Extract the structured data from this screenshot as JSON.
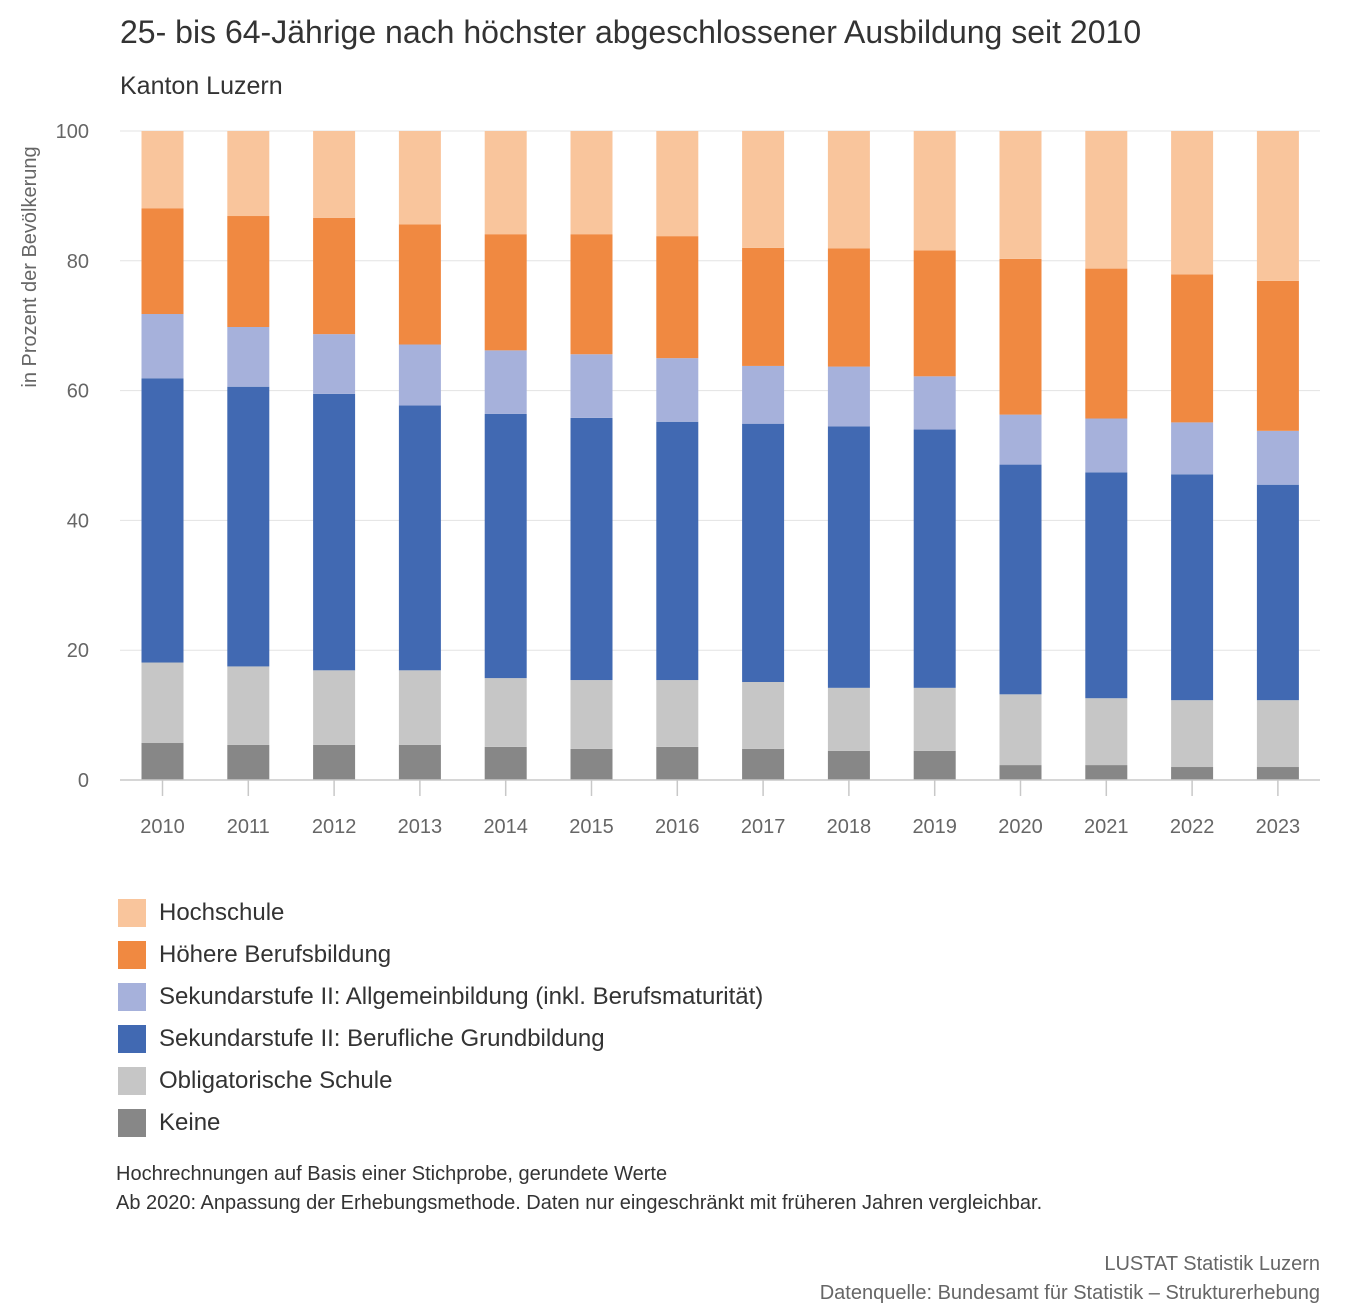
{
  "title": "25- bis 64-Jährige nach höchster abgeschlossener Ausbildung seit 2010",
  "subtitle": "Kanton Luzern",
  "notes": [
    "Hochrechnungen auf Basis einer Stichprobe, gerundete Werte",
    "Ab 2020: Anpassung der Erhebungsmethode. Daten nur eingeschränkt mit früheren Jahren vergleichbar."
  ],
  "source": [
    "LUSTAT Statistik Luzern",
    "Datenquelle: Bundesamt für Statistik – Strukturerhebung"
  ],
  "chart_data": {
    "type": "bar",
    "stacked": true,
    "ylabel": "in Prozent der Bevölkerung",
    "xlabel": "",
    "ylim": [
      0,
      100
    ],
    "yticks": [
      0,
      20,
      40,
      60,
      80,
      100
    ],
    "grid": true,
    "legend_position": "bottom",
    "categories": [
      "2010",
      "2011",
      "2012",
      "2013",
      "2014",
      "2015",
      "2016",
      "2017",
      "2018",
      "2019",
      "2020",
      "2021",
      "2022",
      "2023"
    ],
    "series": [
      {
        "name": "Keine",
        "color": "#878787",
        "values": [
          5.7,
          5.4,
          5.4,
          5.4,
          5.1,
          4.8,
          5.1,
          4.8,
          4.5,
          4.5,
          2.3,
          2.3,
          2.0,
          2.0
        ]
      },
      {
        "name": "Obligatorische Schule",
        "color": "#c6c6c6",
        "values": [
          12.4,
          12.1,
          11.5,
          11.5,
          10.6,
          10.6,
          10.3,
          10.3,
          9.7,
          9.7,
          10.9,
          10.3,
          10.3,
          10.3
        ]
      },
      {
        "name": "Sekundarstufe II: Berufliche Grundbildung",
        "color": "#4169b2",
        "values": [
          43.8,
          43.1,
          42.6,
          40.8,
          40.7,
          40.4,
          39.8,
          39.8,
          40.3,
          39.8,
          35.4,
          34.8,
          34.8,
          33.2
        ]
      },
      {
        "name": "Sekundarstufe II: Allgemeinbildung (inkl. Berufsmaturität)",
        "color": "#a6b1db",
        "values": [
          9.9,
          9.2,
          9.2,
          9.4,
          9.8,
          9.8,
          9.8,
          8.9,
          9.2,
          8.2,
          7.7,
          8.3,
          8.0,
          8.3
        ]
      },
      {
        "name": "Höhere Berufsbildung",
        "color": "#f08941",
        "values": [
          16.3,
          17.1,
          17.9,
          18.5,
          17.9,
          18.5,
          18.8,
          18.2,
          18.2,
          19.4,
          24.0,
          23.1,
          22.8,
          23.1
        ]
      },
      {
        "name": "Hochschule",
        "color": "#f9c59c",
        "values": [
          11.9,
          13.1,
          13.4,
          14.4,
          15.9,
          15.9,
          16.2,
          18.0,
          18.1,
          18.4,
          19.7,
          21.2,
          22.1,
          23.1
        ]
      }
    ]
  }
}
